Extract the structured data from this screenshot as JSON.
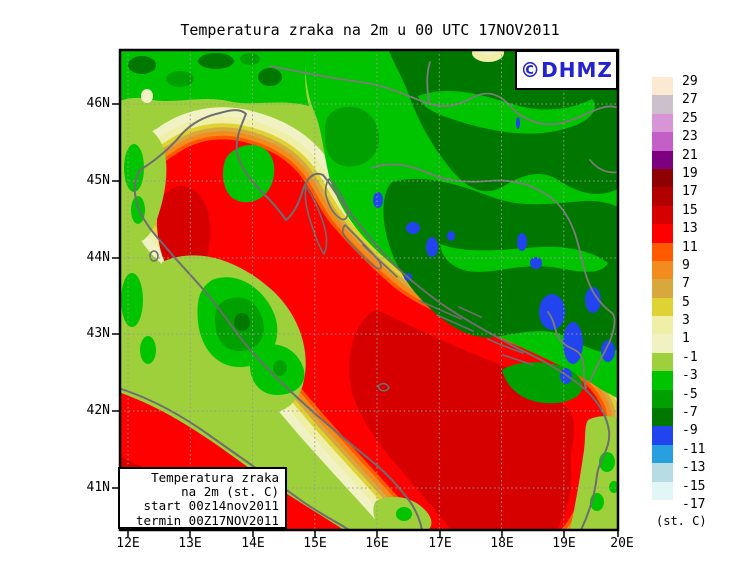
{
  "title": "Temperatura zraka na 2m u 00 UTC 17NOV2011",
  "logo": {
    "text": "©DHMZ"
  },
  "legend_box": {
    "lines": [
      "Temperatura zraka",
      "na 2m (st. C)",
      "start 00z14nov2011",
      "termin 00Z17NOV2011"
    ]
  },
  "axes": {
    "lon": [
      "12E",
      "13E",
      "14E",
      "15E",
      "16E",
      "17E",
      "18E",
      "19E",
      "20E"
    ],
    "lat": [
      "46N",
      "45N",
      "44N",
      "43N",
      "42N",
      "41N"
    ]
  },
  "colorbar": {
    "unit": "(st. C)",
    "entries": [
      {
        "label": "29",
        "color": "#FCE9D2"
      },
      {
        "label": "27",
        "color": "#CDC0CD"
      },
      {
        "label": "25",
        "color": "#D795D7"
      },
      {
        "label": "23",
        "color": "#C45FC8"
      },
      {
        "label": "21",
        "color": "#7D0080"
      },
      {
        "label": "19",
        "color": "#8F0005"
      },
      {
        "label": "17",
        "color": "#B20000"
      },
      {
        "label": "15",
        "color": "#D60000"
      },
      {
        "label": "13",
        "color": "#FF0000"
      },
      {
        "label": "11",
        "color": "#FF5A00"
      },
      {
        "label": "9",
        "color": "#F28C1E"
      },
      {
        "label": "7",
        "color": "#D8A83C"
      },
      {
        "label": "5",
        "color": "#DFD235"
      },
      {
        "label": "3",
        "color": "#EFEFA8"
      },
      {
        "label": "1",
        "color": "#F0F2C4"
      },
      {
        "label": "-1",
        "color": "#9ED03C"
      },
      {
        "label": "-3",
        "color": "#00C400"
      },
      {
        "label": "-5",
        "color": "#00A000"
      },
      {
        "label": "-7",
        "color": "#007800"
      },
      {
        "label": "-9",
        "color": "#2244EE"
      },
      {
        "label": "-11",
        "color": "#28A0E0"
      },
      {
        "label": "-13",
        "color": "#B8DCE4"
      },
      {
        "label": "-15",
        "color": "#E2F6F8"
      },
      {
        "label": "-17",
        "color": "#FFFFFF"
      }
    ]
  }
}
